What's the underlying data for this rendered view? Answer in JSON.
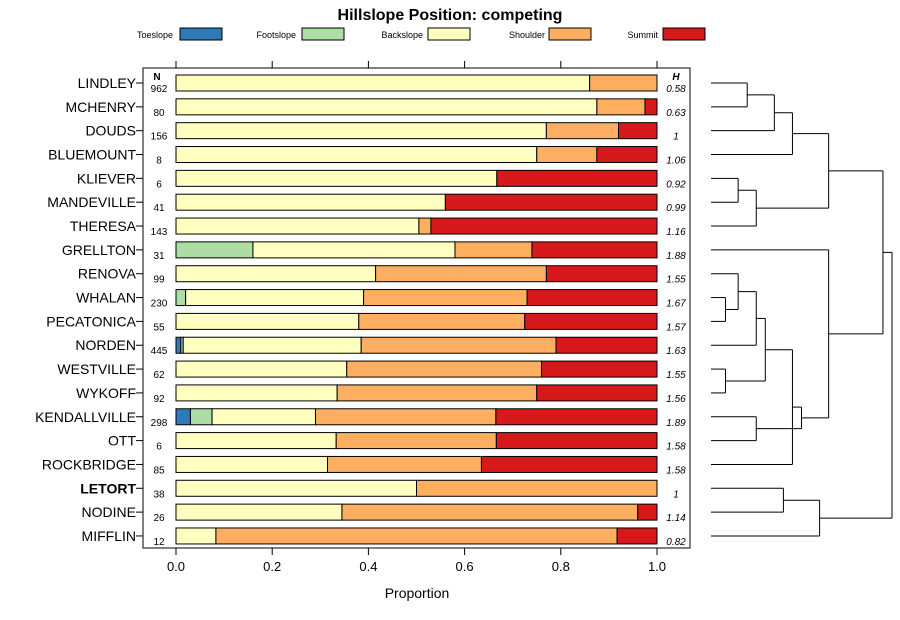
{
  "chart_data": {
    "type": "bar",
    "orientation": "horizontal",
    "stacked": true,
    "title": "Hillslope Position: competing",
    "xlabel": "Proportion",
    "ylabel": "",
    "xlim": [
      0,
      1
    ],
    "x_ticks": [
      "0.0",
      "0.2",
      "0.4",
      "0.6",
      "0.8",
      "1.0"
    ],
    "n_header": "N",
    "h_header": "H",
    "legend_position": "top",
    "series": [
      {
        "name": "Toeslope",
        "color": "#2c7bb6"
      },
      {
        "name": "Footslope",
        "color": "#abdda4"
      },
      {
        "name": "Backslope",
        "color": "#ffffbf"
      },
      {
        "name": "Shoulder",
        "color": "#fdae61"
      },
      {
        "name": "Summit",
        "color": "#d7191c"
      }
    ],
    "categories": [
      {
        "name": "LINDLEY",
        "n": "962",
        "h": "0.58",
        "bold": false,
        "values": [
          0,
          0,
          0.86,
          0.14,
          0
        ]
      },
      {
        "name": "MCHENRY",
        "n": "80",
        "h": "0.63",
        "bold": false,
        "values": [
          0,
          0,
          0.875,
          0.1,
          0.025
        ]
      },
      {
        "name": "DOUDS",
        "n": "156",
        "h": "1",
        "bold": false,
        "values": [
          0,
          0,
          0.77,
          0.15,
          0.08
        ]
      },
      {
        "name": "BLUEMOUNT",
        "n": "8",
        "h": "1.06",
        "bold": false,
        "values": [
          0,
          0,
          0.75,
          0.125,
          0.125
        ]
      },
      {
        "name": "KLIEVER",
        "n": "6",
        "h": "0.92",
        "bold": false,
        "values": [
          0,
          0,
          0.667,
          0,
          0.333
        ]
      },
      {
        "name": "MANDEVILLE",
        "n": "41",
        "h": "0.99",
        "bold": false,
        "values": [
          0,
          0,
          0.56,
          0,
          0.44
        ]
      },
      {
        "name": "THERESA",
        "n": "143",
        "h": "1.16",
        "bold": false,
        "values": [
          0,
          0,
          0.505,
          0.025,
          0.47
        ]
      },
      {
        "name": "GRELLTON",
        "n": "31",
        "h": "1.88",
        "bold": false,
        "values": [
          0,
          0.16,
          0.42,
          0.16,
          0.26
        ]
      },
      {
        "name": "RENOVA",
        "n": "99",
        "h": "1.55",
        "bold": false,
        "values": [
          0,
          0,
          0.415,
          0.355,
          0.23
        ]
      },
      {
        "name": "WHALAN",
        "n": "230",
        "h": "1.67",
        "bold": false,
        "values": [
          0,
          0.02,
          0.37,
          0.34,
          0.27
        ]
      },
      {
        "name": "PECATONICA",
        "n": "55",
        "h": "1.57",
        "bold": false,
        "values": [
          0,
          0,
          0.38,
          0.345,
          0.275
        ]
      },
      {
        "name": "NORDEN",
        "n": "445",
        "h": "1.63",
        "bold": false,
        "values": [
          0.01,
          0.005,
          0.37,
          0.405,
          0.21
        ]
      },
      {
        "name": "WESTVILLE",
        "n": "62",
        "h": "1.55",
        "bold": false,
        "values": [
          0,
          0,
          0.355,
          0.405,
          0.24
        ]
      },
      {
        "name": "WYKOFF",
        "n": "92",
        "h": "1.56",
        "bold": false,
        "values": [
          0,
          0,
          0.335,
          0.415,
          0.25
        ]
      },
      {
        "name": "KENDALLVILLE",
        "n": "298",
        "h": "1.89",
        "bold": false,
        "values": [
          0.03,
          0.045,
          0.215,
          0.375,
          0.335
        ]
      },
      {
        "name": "OTT",
        "n": "6",
        "h": "1.58",
        "bold": false,
        "values": [
          0,
          0,
          0.333,
          0.333,
          0.334
        ]
      },
      {
        "name": "ROCKBRIDGE",
        "n": "85",
        "h": "1.58",
        "bold": false,
        "values": [
          0,
          0,
          0.315,
          0.32,
          0.365
        ]
      },
      {
        "name": "LETORT",
        "n": "38",
        "h": "1",
        "bold": true,
        "values": [
          0,
          0,
          0.5,
          0.5,
          0
        ]
      },
      {
        "name": "NODINE",
        "n": "26",
        "h": "1.14",
        "bold": false,
        "values": [
          0,
          0,
          0.345,
          0.615,
          0.04
        ]
      },
      {
        "name": "MIFFLIN",
        "n": "12",
        "h": "0.82",
        "bold": false,
        "values": [
          0,
          0,
          0.083,
          0.834,
          0.083
        ]
      }
    ],
    "dendrogram": {
      "description": "hierarchical clustering of soil series, leaves ordered top to bottom",
      "merges": [
        [
          0,
          1,
          0.2
        ],
        [
          20,
          2,
          0.35
        ],
        [
          21,
          3,
          0.45
        ],
        [
          4,
          5,
          0.15
        ],
        [
          23,
          6,
          0.25
        ],
        [
          22,
          24,
          0.65
        ],
        [
          9,
          10,
          0.08
        ],
        [
          8,
          26,
          0.15
        ],
        [
          27,
          11,
          0.25
        ],
        [
          12,
          13,
          0.08
        ],
        [
          28,
          29,
          0.3
        ],
        [
          14,
          15,
          0.25
        ],
        [
          30,
          16,
          0.45
        ],
        [
          31,
          32,
          0.5
        ],
        [
          7,
          33,
          0.65
        ],
        [
          25,
          34,
          0.95
        ],
        [
          17,
          18,
          0.4
        ],
        [
          36,
          19,
          0.6
        ],
        [
          35,
          37,
          1.0
        ]
      ]
    }
  }
}
